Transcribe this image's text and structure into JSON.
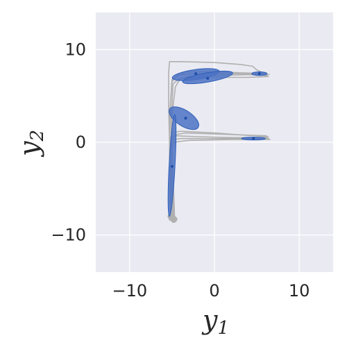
{
  "chart_data": {
    "type": "scatter",
    "xlabel": "y",
    "xlabel_sub": "1",
    "ylabel": "y",
    "ylabel_sub": "2",
    "xlim": [
      -14,
      14
    ],
    "ylim": [
      -14,
      14
    ],
    "xticks": [
      -10,
      0,
      10
    ],
    "yticks": [
      -10,
      0,
      10
    ],
    "xtick_labels": [
      "−10",
      "0",
      "10"
    ],
    "ytick_labels": [
      "−10",
      "0",
      "10"
    ],
    "grid": true,
    "colors": {
      "background": "#EAEAF2",
      "grid": "#FFFFFF",
      "trajectory": "#B0B0B0",
      "ellipse_fill": "#4C72C4",
      "ellipse_edge": "#2F5FB8",
      "center": "#1F4FA8"
    },
    "trajectories": [
      [
        [
          -4.8,
          -8.4
        ],
        [
          -5.1,
          -4
        ],
        [
          -5.3,
          0
        ],
        [
          -5.4,
          4
        ],
        [
          -5.4,
          7.5
        ],
        [
          -5.3,
          8.7
        ],
        [
          -4,
          8.7
        ],
        [
          0,
          8.6
        ],
        [
          3,
          8.4
        ],
        [
          4.5,
          8.2
        ],
        [
          5,
          7.8
        ],
        [
          6,
          7.4
        ],
        [
          6.5,
          7.3
        ]
      ],
      [
        [
          -4.9,
          -8.3
        ],
        [
          -5.2,
          -3
        ],
        [
          -5.3,
          3
        ],
        [
          -5,
          6.5
        ],
        [
          -4.4,
          7.3
        ],
        [
          -2,
          7.4
        ],
        [
          2,
          7.4
        ],
        [
          6,
          7.3
        ]
      ],
      [
        [
          -4.8,
          -8.1
        ],
        [
          -5,
          -4
        ],
        [
          -5.1,
          2
        ],
        [
          -4.9,
          6.3
        ],
        [
          -4.2,
          6.8
        ],
        [
          -3,
          7.1
        ],
        [
          0,
          7.2
        ],
        [
          4,
          7.3
        ],
        [
          6.3,
          7.2
        ]
      ],
      [
        [
          -5,
          -8.2
        ],
        [
          -5.1,
          -3
        ],
        [
          -5,
          3
        ],
        [
          -4.6,
          6
        ],
        [
          -4,
          6.9
        ],
        [
          -2.5,
          7
        ],
        [
          1,
          7
        ],
        [
          4,
          7
        ],
        [
          6.4,
          7.1
        ]
      ],
      [
        [
          -4.7,
          -8.2
        ],
        [
          -4.9,
          -3
        ],
        [
          -5.1,
          1
        ],
        [
          -5.2,
          4
        ],
        [
          -5,
          6.8
        ],
        [
          -3.5,
          7.6
        ],
        [
          0,
          7.6
        ],
        [
          3,
          7.5
        ],
        [
          6.1,
          7.4
        ]
      ],
      [
        [
          -5,
          -8
        ],
        [
          -5.2,
          -4
        ],
        [
          -5.3,
          -1
        ],
        [
          -5.2,
          0.5
        ],
        [
          -4.5,
          0.7
        ],
        [
          -2,
          0.6
        ],
        [
          2,
          0.5
        ],
        [
          6.3,
          0.5
        ]
      ],
      [
        [
          -4.9,
          -8.1
        ],
        [
          -5.1,
          -4
        ],
        [
          -5.1,
          -0.5
        ],
        [
          -4.9,
          0.3
        ],
        [
          -4,
          0.4
        ],
        [
          0,
          0.4
        ],
        [
          3,
          0.4
        ],
        [
          6.5,
          0.4
        ]
      ],
      [
        [
          -5.2,
          -8
        ],
        [
          -5.3,
          -3
        ],
        [
          -5.3,
          0
        ],
        [
          -5,
          1
        ],
        [
          -4,
          1.2
        ],
        [
          0,
          1
        ],
        [
          3,
          0.8
        ],
        [
          6.4,
          0.6
        ]
      ],
      [
        [
          -4.8,
          -8.3
        ],
        [
          -5,
          -4
        ],
        [
          -5.1,
          -1
        ],
        [
          -4.8,
          0
        ],
        [
          -3,
          0.2
        ],
        [
          2,
          0.3
        ],
        [
          6.6,
          0.3
        ]
      ],
      [
        [
          -5.1,
          -8.2
        ],
        [
          -5.2,
          -4
        ],
        [
          -5.1,
          -0.2
        ],
        [
          -4.7,
          0.8
        ],
        [
          -3.5,
          1
        ],
        [
          0,
          0.9
        ],
        [
          6.2,
          0.7
        ]
      ]
    ],
    "start_points": [
      [
        -4.8,
        -8.4
      ],
      [
        -5.1,
        -8.2
      ],
      [
        -4.9,
        -8.1
      ],
      [
        -5.2,
        -8
      ],
      [
        -4.7,
        -8.3
      ]
    ],
    "ellipses": [
      {
        "cx": -2.2,
        "cy": 7.3,
        "rx": 2.8,
        "ry": 0.55,
        "angle": 8
      },
      {
        "cx": -0.8,
        "cy": 7.0,
        "rx": 3.0,
        "ry": 0.5,
        "angle": 10
      },
      {
        "cx": 5.3,
        "cy": 7.4,
        "rx": 0.9,
        "ry": 0.2,
        "angle": 0
      },
      {
        "cx": -3.6,
        "cy": 2.6,
        "rx": 2.0,
        "ry": 0.85,
        "angle": -33
      },
      {
        "cx": 4.6,
        "cy": 0.4,
        "rx": 1.4,
        "ry": 0.15,
        "angle": 0
      },
      {
        "cx": -5.0,
        "cy": -2.5,
        "rx": 0.35,
        "ry": 5.5,
        "angle": -3
      }
    ],
    "centers": [
      [
        -2.2,
        7.4
      ],
      [
        -0.8,
        6.9
      ],
      [
        5.3,
        7.4
      ],
      [
        -3.4,
        2.6
      ],
      [
        4.6,
        0.4
      ],
      [
        -5.0,
        -2.6
      ]
    ]
  }
}
